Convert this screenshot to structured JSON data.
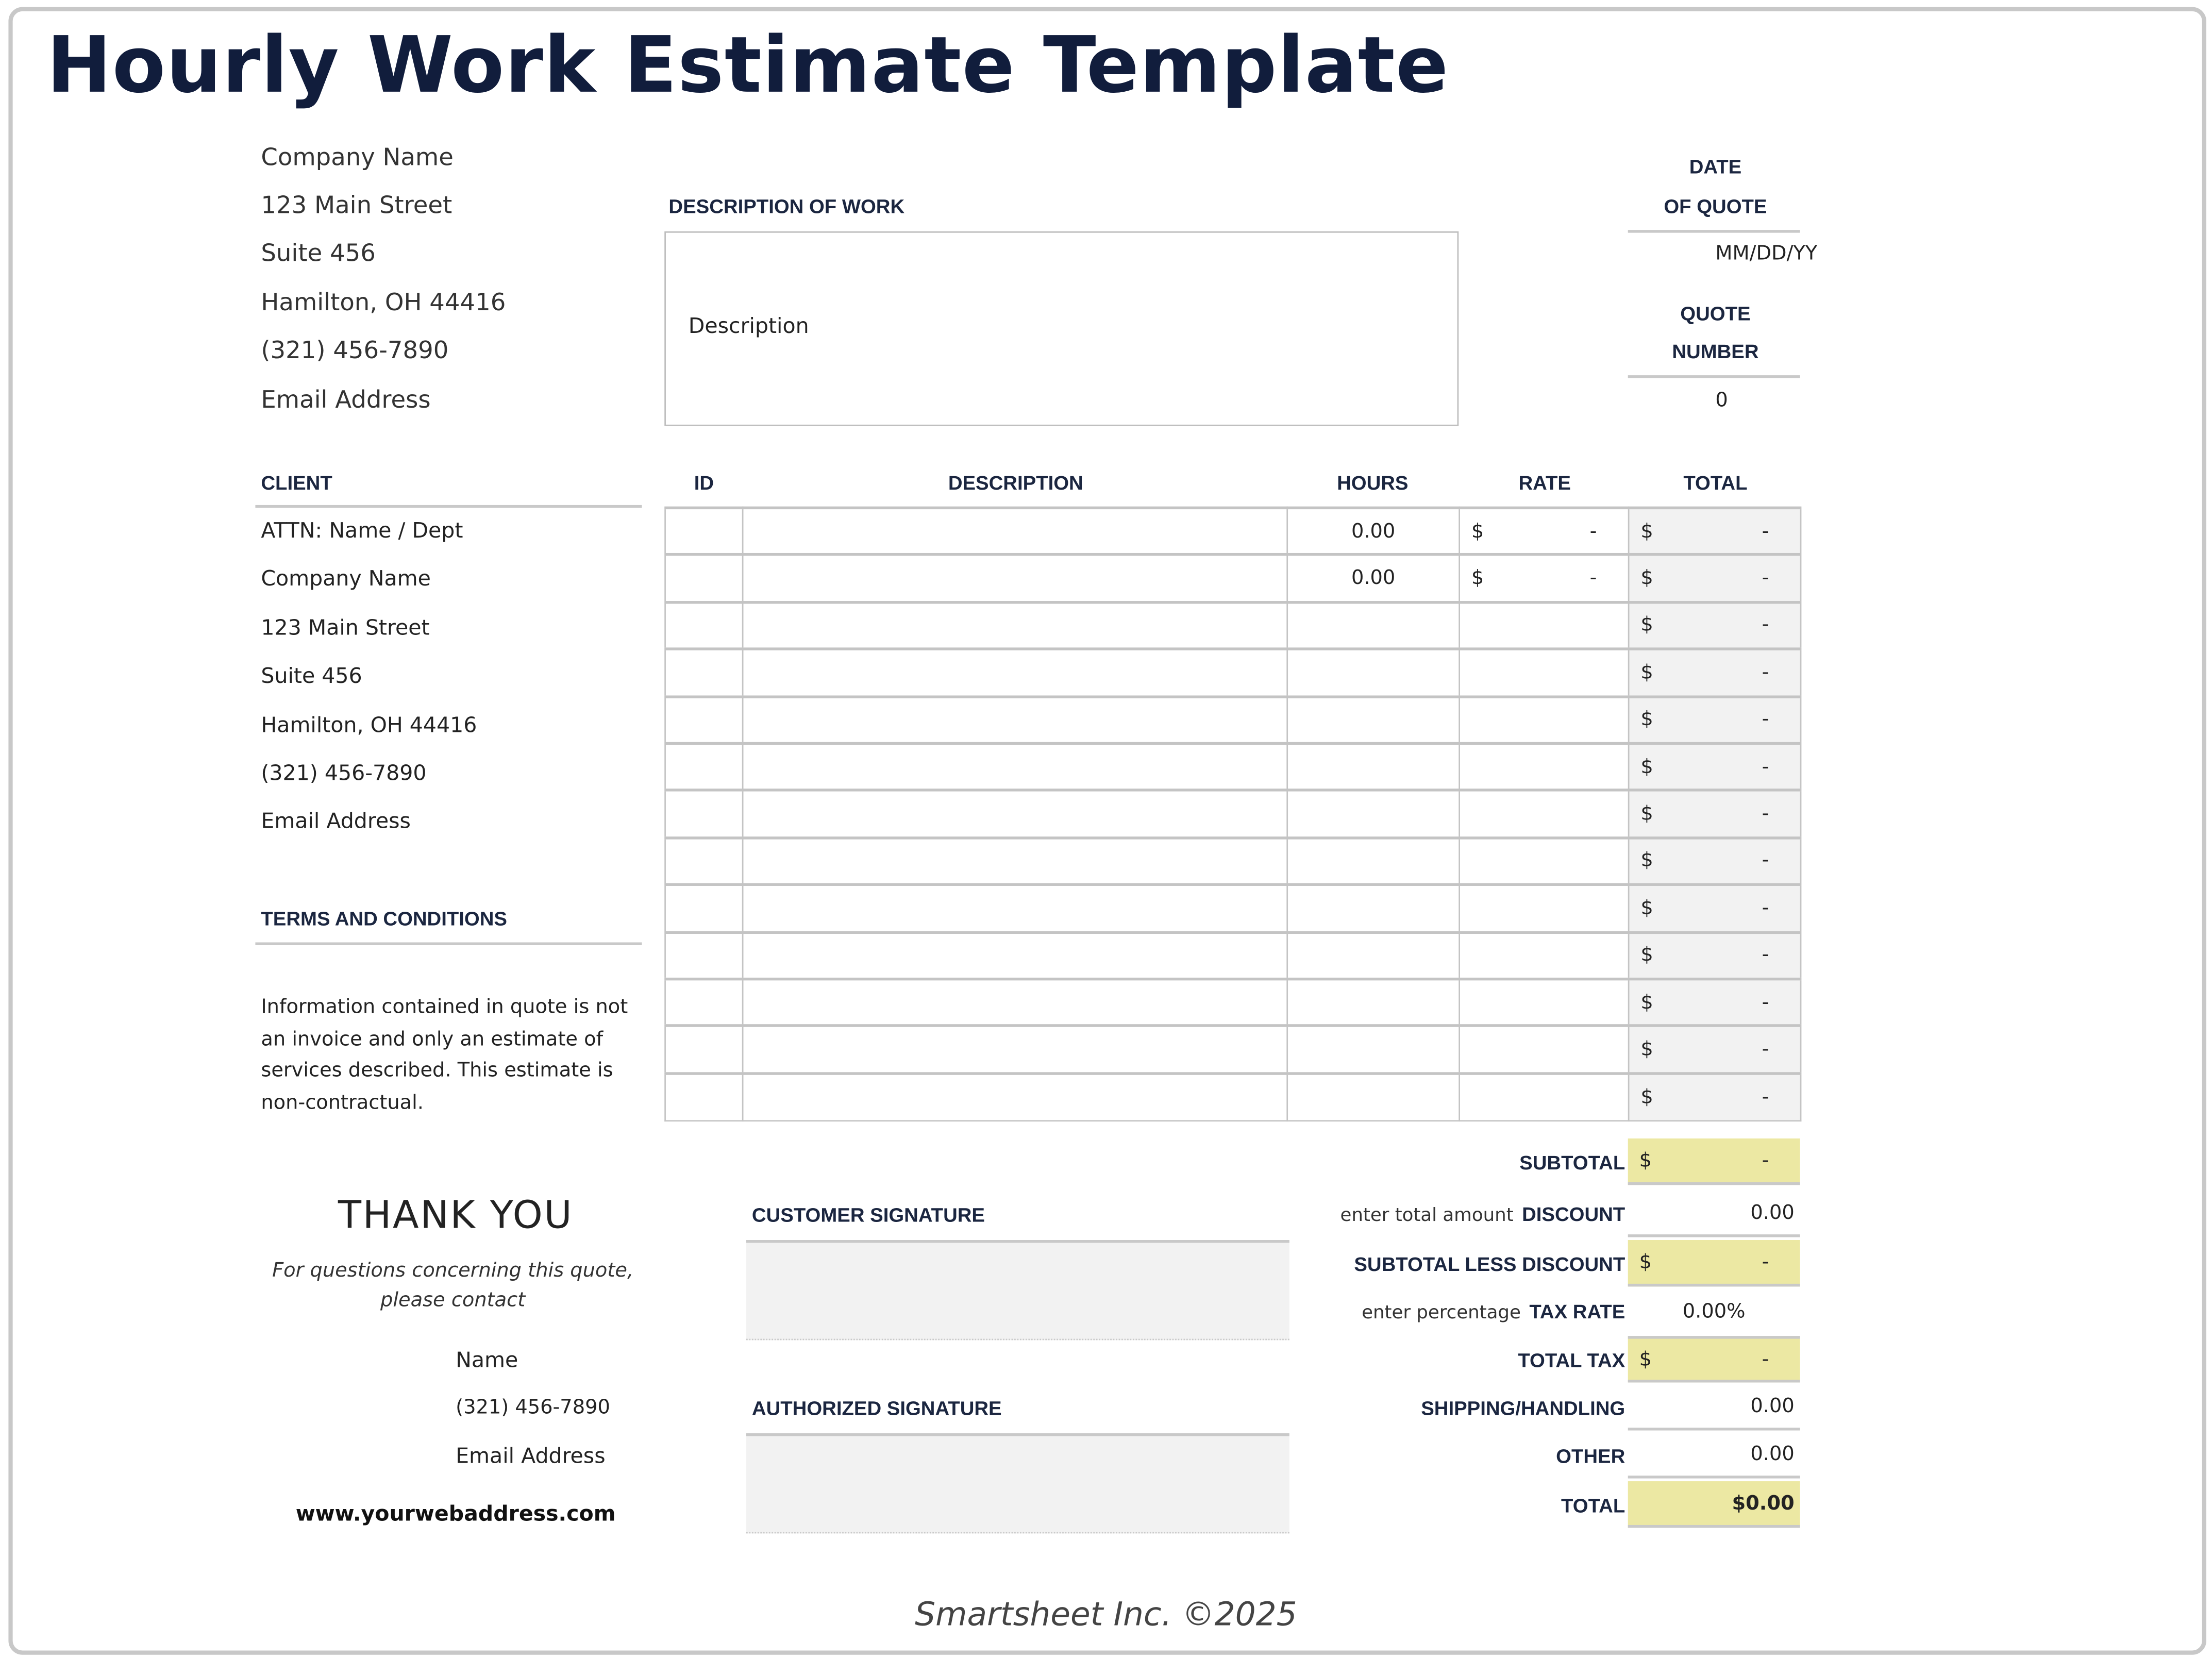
{
  "title": "Hourly Work Estimate Template",
  "company": {
    "lines": [
      "Company Name",
      "123 Main Street",
      "Suite 456",
      "Hamilton, OH  44416",
      "(321) 456-7890",
      "Email Address"
    ]
  },
  "description_of_work": {
    "label": "DESCRIPTION OF WORK",
    "value": "Description"
  },
  "quote": {
    "date_label_1": "DATE",
    "date_label_2": "OF QUOTE",
    "date_value": "MM/DD/YY",
    "number_label_1": "QUOTE",
    "number_label_2": "NUMBER",
    "number_value": "0"
  },
  "client": {
    "label": "CLIENT",
    "lines": [
      "ATTN: Name / Dept",
      "Company Name",
      "123 Main Street",
      "Suite 456",
      "Hamilton, OH  44416",
      "(321) 456-7890",
      "Email Address"
    ]
  },
  "terms": {
    "label": "TERMS AND CONDITIONS",
    "lines": [
      "Information contained in quote is not",
      "an invoice and only an estimate of",
      "services described. This estimate is",
      "non-contractual."
    ]
  },
  "table": {
    "headers": {
      "id": "ID",
      "description": "DESCRIPTION",
      "hours": "HOURS",
      "rate": "RATE",
      "total": "TOTAL"
    },
    "rows": [
      {
        "id": "",
        "description": "",
        "hours": "0.00",
        "rate": "-",
        "total": "-"
      },
      {
        "id": "",
        "description": "",
        "hours": "0.00",
        "rate": "-",
        "total": "-"
      },
      {
        "id": "",
        "description": "",
        "hours": "",
        "rate": "",
        "total": "-"
      },
      {
        "id": "",
        "description": "",
        "hours": "",
        "rate": "",
        "total": "-"
      },
      {
        "id": "",
        "description": "",
        "hours": "",
        "rate": "",
        "total": "-"
      },
      {
        "id": "",
        "description": "",
        "hours": "",
        "rate": "",
        "total": "-"
      },
      {
        "id": "",
        "description": "",
        "hours": "",
        "rate": "",
        "total": "-"
      },
      {
        "id": "",
        "description": "",
        "hours": "",
        "rate": "",
        "total": "-"
      },
      {
        "id": "",
        "description": "",
        "hours": "",
        "rate": "",
        "total": "-"
      },
      {
        "id": "",
        "description": "",
        "hours": "",
        "rate": "",
        "total": "-"
      },
      {
        "id": "",
        "description": "",
        "hours": "",
        "rate": "",
        "total": "-"
      },
      {
        "id": "",
        "description": "",
        "hours": "",
        "rate": "",
        "total": "-"
      },
      {
        "id": "",
        "description": "",
        "hours": "",
        "rate": "",
        "total": "-"
      }
    ],
    "currency": "$"
  },
  "summary": {
    "subtotal": {
      "label": "SUBTOTAL",
      "value": "-"
    },
    "discount": {
      "hint": "enter total amount",
      "label": "DISCOUNT",
      "value": "0.00"
    },
    "subtotal_less_discount": {
      "label": "SUBTOTAL LESS DISCOUNT",
      "value": "-"
    },
    "tax_rate": {
      "hint": "enter percentage",
      "label": "TAX RATE",
      "value": "0.00%"
    },
    "total_tax": {
      "label": "TOTAL TAX",
      "value": "-"
    },
    "shipping": {
      "label": "SHIPPING/HANDLING",
      "value": "0.00"
    },
    "other": {
      "label": "OTHER",
      "value": "0.00"
    },
    "total": {
      "label": "TOTAL",
      "value": "$0.00"
    }
  },
  "thank_you": {
    "heading": "THANK YOU",
    "note_1": "For questions concerning this quote,",
    "note_2": "please contact",
    "name": "Name",
    "phone": "(321) 456-7890",
    "email": "Email Address",
    "website": "www.yourwebaddress.com"
  },
  "signatures": {
    "customer": "CUSTOMER SIGNATURE",
    "authorized": "AUTHORIZED SIGNATURE"
  },
  "footer": "Smartsheet Inc. ©2025",
  "colors": {
    "title": "#111d3c",
    "highlight": "#ece8a3",
    "total_cell": "#f2f2f2",
    "border": "#c9c9c9"
  }
}
